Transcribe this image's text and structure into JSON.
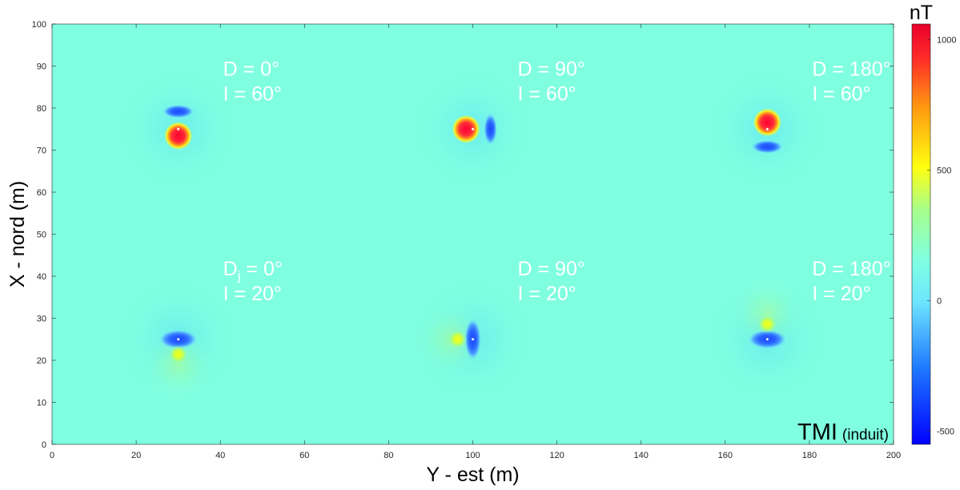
{
  "chart_data": {
    "type": "heatmap",
    "title": "TMI (induit)",
    "title_main": "TMI",
    "title_sub": "(induit)",
    "xlabel": "Y - est (m)",
    "ylabel": "X - nord (m)",
    "xlim": [
      0,
      200
    ],
    "ylim": [
      0,
      100
    ],
    "xticks": [
      0,
      20,
      40,
      60,
      80,
      100,
      120,
      140,
      160,
      180,
      200
    ],
    "yticks": [
      0,
      10,
      20,
      30,
      40,
      50,
      60,
      70,
      80,
      90,
      100
    ],
    "background_color": "#7FFFE0",
    "colorbar": {
      "unit": "nT",
      "range": [
        -550,
        1060
      ],
      "ticks": [
        -500,
        0,
        500,
        1000
      ],
      "tick_labels": [
        "-500",
        "0",
        "500",
        "1000"
      ],
      "colormap": "jet"
    },
    "sources": [
      {
        "y": 30,
        "x": 25,
        "D_label": "Dj = 0°",
        "I_label": "I = 20°",
        "D_main": "D",
        "D_sub": "j",
        "D_rest": " = 0°",
        "declination": 0,
        "inclination": 20
      },
      {
        "y": 100,
        "x": 25,
        "D_label": "D = 90°",
        "I_label": "I = 20°",
        "declination": 90,
        "inclination": 20
      },
      {
        "y": 170,
        "x": 25,
        "D_label": "D = 180°",
        "I_label": "I = 20°",
        "declination": 180,
        "inclination": 20
      },
      {
        "y": 30,
        "x": 75,
        "D_label": "D = 0°",
        "I_label": "I = 60°",
        "declination": 0,
        "inclination": 60
      },
      {
        "y": 100,
        "x": 75,
        "D_label": "D = 90°",
        "I_label": "I = 60°",
        "declination": 90,
        "inclination": 60
      },
      {
        "y": 170,
        "x": 75,
        "D_label": "D = 180°",
        "I_label": "I = 60°",
        "declination": 180,
        "inclination": 60
      }
    ]
  }
}
